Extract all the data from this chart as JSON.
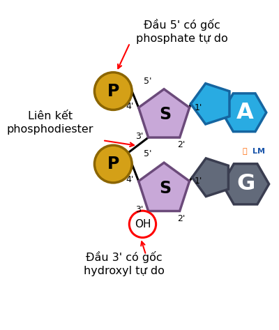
{
  "bg_color": "#ffffff",
  "phosphate_color": "#D4A017",
  "phosphate_edge_color": "#8B6500",
  "sugar_color": "#C8A8D8",
  "sugar_edge_color": "#6B4A7A",
  "base_A_color": "#29ABE2",
  "base_A_edge_color": "#1565A0",
  "base_G_color": "#626A7A",
  "base_G_edge_color": "#3A3D50",
  "red_color": "#FF0000",
  "oh_edge_color": "#FF0000",
  "annotation_top": "Đầu 5' có gốc\nphosphate tự do",
  "annotation_bottom": "Đầu 3' có gốc\nhydroxyl tự do",
  "annotation_left": "Liên kết\nphosphodiester",
  "label_A": "A",
  "label_G": "G",
  "label_S": "S",
  "label_P": "P",
  "label_OH": "OH",
  "watermark_circle": "Ⓖ",
  "watermark_text": "LM",
  "watermark_circle_color": "#FF6600",
  "watermark_text_color": "#1A55AA"
}
